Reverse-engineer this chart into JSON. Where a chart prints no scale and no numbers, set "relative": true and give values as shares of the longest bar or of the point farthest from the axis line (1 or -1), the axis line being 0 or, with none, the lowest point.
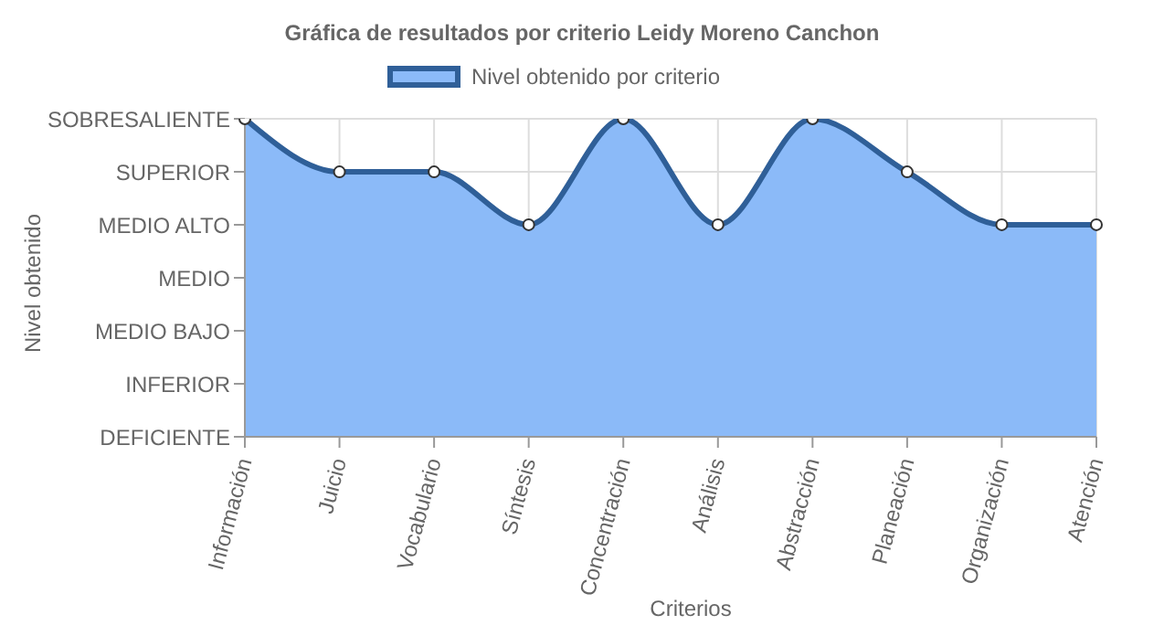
{
  "chart_data": {
    "type": "area",
    "title": "Gráfica de resultados por criterio Leidy Moreno Canchon",
    "xlabel": "Criterios",
    "annotations": [
      "Nivel obtenido"
    ],
    "categories": [
      "Información",
      "Juicio",
      "Vocabulario",
      "Síntesis",
      "Concentración",
      "Análisis",
      "Abstracción",
      "Planeación",
      "Organización",
      "Atención"
    ],
    "y_categories": [
      "SOBRESALIENTE",
      "SUPERIOR",
      "MEDIO ALTO",
      "MEDIO",
      "MEDIO BAJO",
      "INFERIOR",
      "DEFICIENTE"
    ],
    "relative": true,
    "series": [
      {
        "name": "Nivel obtenido por criterio",
        "color": "#2f5f98",
        "values": [
          1,
          0.833,
          0.833,
          0.667,
          1,
          0.667,
          1,
          0.833,
          0.667,
          0.667
        ]
      }
    ],
    "grid": true,
    "legend": "top",
    "marker": "circle"
  }
}
